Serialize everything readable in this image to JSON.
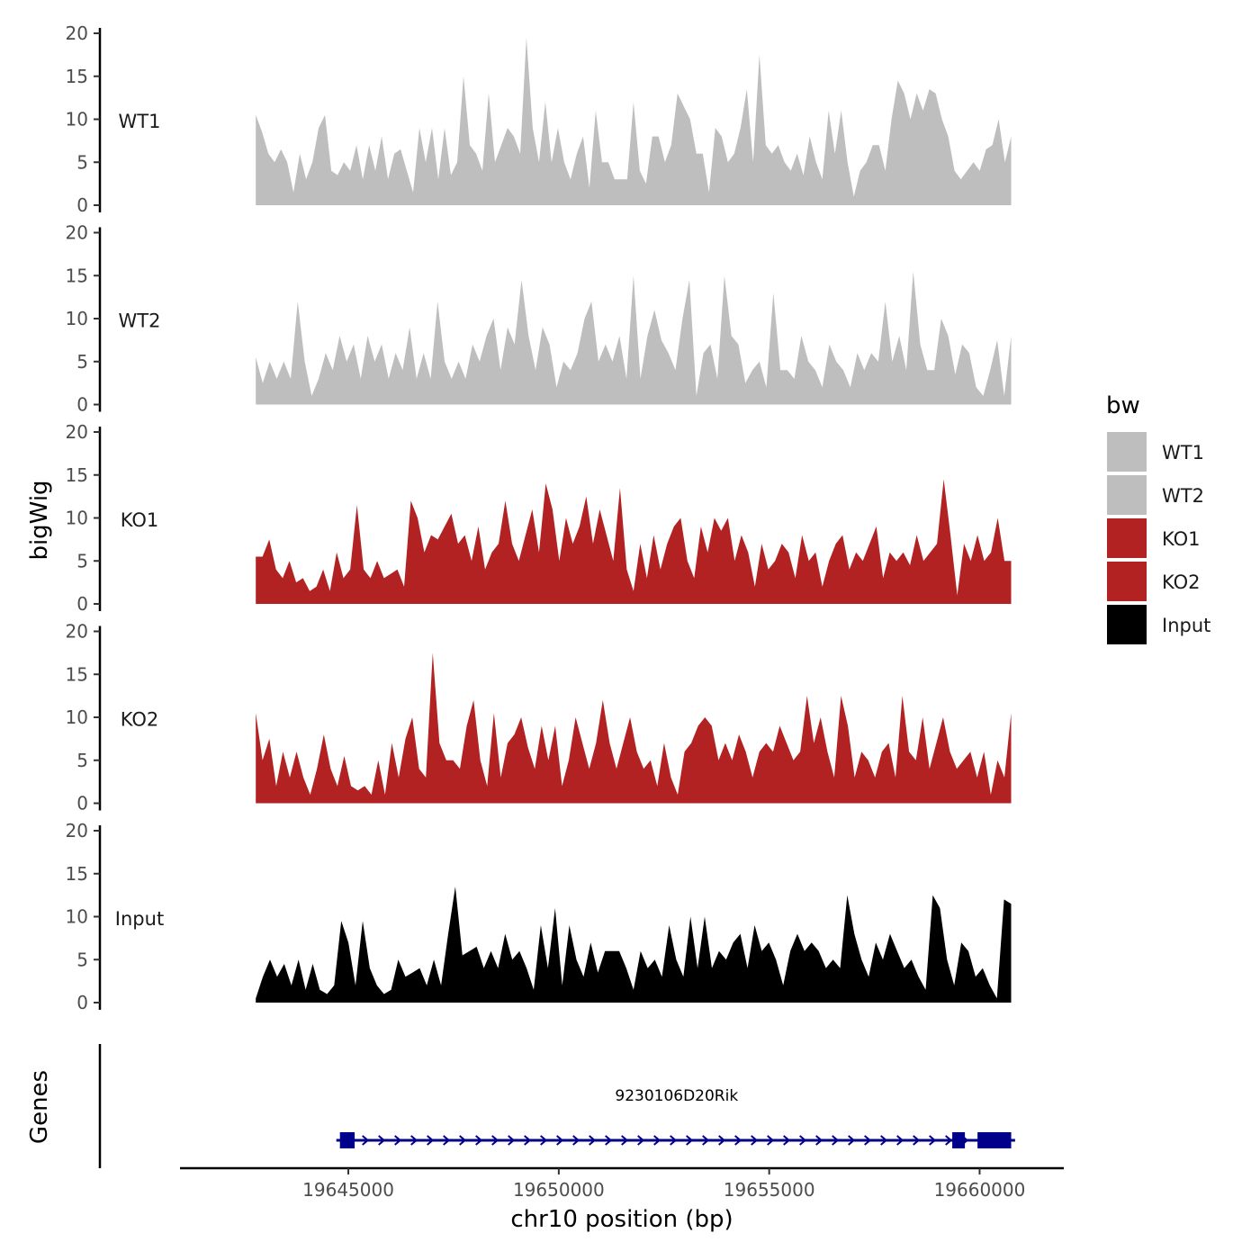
{
  "chart_data": {
    "type": "area",
    "ylabel": "bigWig",
    "xlabel": "chr10 position (bp)",
    "ylim": [
      0,
      20
    ],
    "y_ticks": [
      0,
      5,
      10,
      15,
      20
    ],
    "x_ticks": [
      19645000,
      19650000,
      19655000,
      19660000
    ],
    "x_tick_labels": [
      "19645000",
      "19650000",
      "19655000",
      "19660000"
    ],
    "x_range": [
      19641000,
      19662000
    ],
    "data_range": [
      19642800,
      19660750
    ],
    "legend": {
      "title": "bw",
      "entries": [
        {
          "label": "WT1",
          "color": "#bebebe"
        },
        {
          "label": "WT2",
          "color": "#bebebe"
        },
        {
          "label": "KO1",
          "color": "#b22222"
        },
        {
          "label": "KO2",
          "color": "#b22222"
        },
        {
          "label": "Input",
          "color": "#000000"
        }
      ]
    },
    "series": [
      {
        "name": "WT1",
        "color": "#bebebe",
        "values": [
          10.5,
          8.5,
          6,
          5,
          6.5,
          5,
          1.5,
          6,
          3,
          5,
          9,
          10.5,
          4,
          3.5,
          5,
          4,
          7,
          3,
          7,
          4,
          8,
          3,
          6,
          6.5,
          4,
          1.5,
          9,
          5,
          9,
          3,
          9,
          3.5,
          5,
          15,
          7,
          6,
          4,
          13,
          5,
          7,
          9,
          8,
          6,
          19.5,
          9,
          5,
          12,
          5,
          9,
          5,
          3,
          6,
          8,
          2,
          11,
          5,
          5,
          3,
          3,
          3,
          12,
          4,
          2.5,
          8,
          8,
          5,
          7,
          13,
          11.5,
          10,
          6,
          6,
          1.5,
          9,
          8,
          5,
          6,
          9,
          13.5,
          5,
          17.5,
          7,
          6,
          7,
          5,
          4,
          6,
          3.5,
          8,
          5,
          3,
          11,
          6,
          11,
          5,
          1,
          4,
          5,
          7,
          7,
          4,
          10,
          14.5,
          13,
          10,
          13,
          11,
          13.5,
          13,
          10,
          8,
          4,
          3,
          4,
          5,
          4,
          6.5,
          7,
          10,
          5,
          8
        ]
      },
      {
        "name": "WT2",
        "color": "#bebebe",
        "values": [
          5.5,
          2.5,
          5,
          3,
          5,
          3,
          12,
          5,
          1,
          3,
          6,
          4,
          8,
          5,
          7,
          3,
          8,
          5,
          7,
          3,
          6,
          4,
          9,
          3,
          6,
          3,
          12,
          5,
          3,
          5,
          3,
          7,
          5,
          8,
          10,
          4,
          9,
          7,
          14.5,
          8,
          4,
          9,
          7,
          2,
          5,
          4,
          6,
          10,
          12,
          5,
          7,
          5,
          8,
          3,
          15,
          3,
          8,
          11,
          7.5,
          6,
          4,
          10,
          14.5,
          1,
          6,
          7,
          3,
          15,
          8,
          7,
          2.5,
          4,
          5,
          2,
          13,
          4,
          4,
          3,
          8,
          5,
          4,
          2,
          7,
          5,
          4,
          2,
          6,
          4,
          6,
          5,
          12,
          5,
          8,
          4,
          15.5,
          7,
          4,
          4,
          10,
          8,
          3.5,
          7,
          6,
          2,
          1,
          4,
          7.5,
          1,
          8
        ]
      },
      {
        "name": "KO1",
        "color": "#b22222",
        "values": [
          5.5,
          5.5,
          7.5,
          4,
          3,
          5,
          2.5,
          3,
          1.5,
          2,
          4,
          1.5,
          6,
          3,
          4,
          11.5,
          4,
          3,
          5,
          3,
          3.5,
          4,
          2,
          12,
          10,
          6,
          8,
          7.5,
          9,
          10.5,
          7,
          8,
          5,
          9,
          4,
          6,
          7,
          12,
          7,
          5,
          8,
          11,
          6,
          14,
          11,
          5,
          10,
          7,
          9,
          12.5,
          7,
          11,
          8,
          5,
          13.5,
          4,
          1.5,
          7,
          3,
          8,
          4,
          7,
          9,
          10,
          5,
          3,
          9,
          6,
          10,
          8.5,
          10,
          5,
          8,
          6,
          2,
          7,
          4,
          5,
          7,
          6,
          3,
          8,
          5,
          6,
          2,
          5,
          7,
          8,
          4,
          6,
          5,
          7,
          9,
          3,
          6,
          5,
          6,
          4.5,
          8,
          5,
          6,
          7,
          14.5,
          8,
          1,
          7,
          5,
          8,
          5,
          6,
          10,
          5,
          5
        ]
      },
      {
        "name": "KO2",
        "color": "#b22222",
        "values": [
          10.5,
          5,
          7.5,
          2,
          6,
          3,
          6,
          3,
          1,
          4,
          8,
          4,
          2,
          5.5,
          2,
          1.5,
          2,
          1,
          5,
          1,
          7,
          3,
          7.5,
          10,
          4,
          3,
          17.5,
          7,
          5,
          5,
          4,
          9,
          12,
          5,
          2,
          10.5,
          3,
          7,
          8,
          10,
          6.5,
          4,
          9,
          5,
          9,
          2,
          5,
          10,
          7,
          4,
          7,
          12,
          7,
          4,
          7,
          10,
          6,
          4,
          5,
          2,
          7,
          3,
          1,
          6,
          7,
          9,
          10,
          9,
          5,
          7,
          5,
          8,
          6,
          3,
          6,
          7,
          6,
          9,
          7,
          5,
          6,
          12.5,
          7,
          10,
          6,
          3,
          12.5,
          9,
          3,
          6,
          5,
          3,
          6,
          7,
          3,
          12.5,
          6,
          5,
          10,
          4,
          7,
          10,
          6,
          4,
          5,
          6,
          3,
          6,
          1,
          5,
          3,
          10.5
        ]
      },
      {
        "name": "Input",
        "color": "#000000",
        "values": [
          0.5,
          3,
          5,
          3,
          4.5,
          2,
          5,
          1.5,
          4.5,
          1.5,
          1,
          2,
          9.5,
          7,
          2,
          9.5,
          4,
          2,
          1,
          1.5,
          5,
          3,
          3.5,
          4,
          2,
          5,
          2,
          8,
          13.5,
          5.5,
          6,
          6.5,
          4,
          6,
          4,
          8,
          5,
          6,
          4,
          1.5,
          9,
          4,
          11,
          2,
          9,
          5,
          3,
          7,
          3.5,
          6,
          6,
          6,
          4,
          1.5,
          6,
          4,
          5,
          3,
          9,
          5,
          3,
          10,
          4,
          10,
          4,
          6,
          5,
          7,
          8,
          4,
          9,
          6,
          7,
          5,
          2,
          6,
          8,
          6,
          7,
          6,
          4,
          5,
          4,
          12.5,
          8,
          5,
          3,
          7,
          5,
          8,
          6,
          4,
          5,
          3,
          1.5,
          12.5,
          11,
          5,
          2,
          7,
          6,
          3,
          4,
          2,
          0.5,
          12,
          11.5
        ]
      }
    ],
    "gene": {
      "track_label": "Genes",
      "name": "9230106D20Rik",
      "strand": "+",
      "start": 19644800,
      "end": 19660800,
      "exons": [
        [
          19644800,
          19645150
        ],
        [
          19659350,
          19659650
        ],
        [
          19659950,
          19660750
        ]
      ]
    }
  }
}
